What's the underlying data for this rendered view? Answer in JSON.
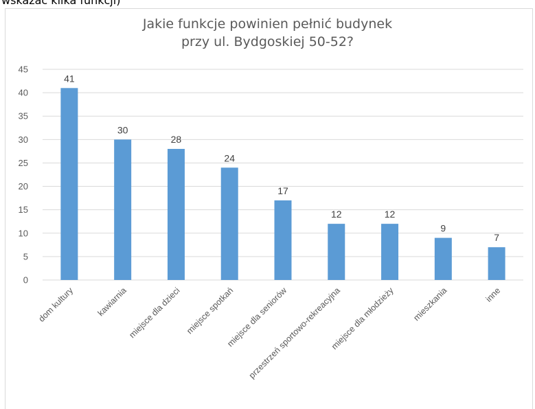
{
  "page": {
    "caption": "wskazać kilka funkcji)"
  },
  "colors": {
    "bar": "#5b9bd5",
    "grid": "#d9d9d9",
    "axis_text": "#595959",
    "label_text": "#404040"
  },
  "chart_data": {
    "type": "bar",
    "title_lines": [
      "Jakie funkcje powinien pełnić budynek",
      "przy ul. Bydgoskiej 50-52?"
    ],
    "categories": [
      "dom kultury",
      "kawiarnia",
      "miejsce dla dzieci",
      "miejsce spotkań",
      "miejsce dla seniorów",
      "przestrzeń sportowo-rekreacyjna",
      "miejsce dla młodzieży",
      "mieszkania",
      "inne"
    ],
    "values": [
      41,
      30,
      28,
      24,
      17,
      12,
      12,
      9,
      7
    ],
    "data_labels": [
      "41",
      "30",
      "28",
      "24",
      "17",
      "12",
      "12",
      "9",
      "7"
    ],
    "ylim": [
      0,
      45
    ],
    "yticks": [
      0,
      5,
      10,
      15,
      20,
      25,
      30,
      35,
      40,
      45
    ],
    "ytick_labels": [
      "0",
      "5",
      "10",
      "15",
      "20",
      "25",
      "30",
      "35",
      "40",
      "45"
    ],
    "grid": true,
    "legend": "none"
  }
}
